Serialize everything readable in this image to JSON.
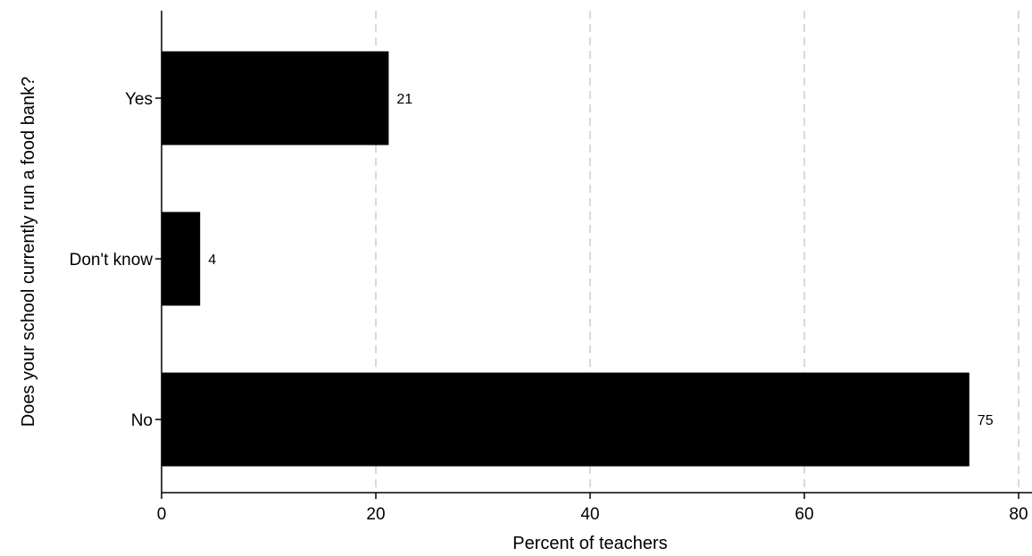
{
  "chart_data": {
    "type": "bar",
    "orientation": "horizontal",
    "categories": [
      "Yes",
      "Don't know",
      "No"
    ],
    "values": [
      21.2,
      3.6,
      75.4
    ],
    "data_labels": [
      "21",
      "4",
      "75"
    ],
    "xlabel": "Percent of teachers",
    "ylabel": "Does your school currently run a food bank?",
    "xlim": [
      0,
      80
    ],
    "xticks": [
      "0",
      "20",
      "40",
      "60",
      "80"
    ],
    "grid": "vertical dashed",
    "bar_color": "#000000",
    "grid_color": "#d9d9d9"
  }
}
